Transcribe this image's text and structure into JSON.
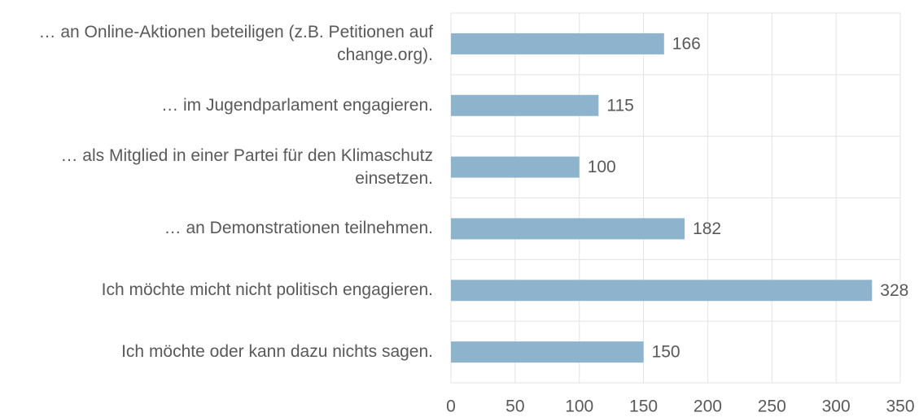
{
  "chart_data": {
    "type": "bar",
    "orientation": "horizontal",
    "categories": [
      "… an Online-Aktionen beteiligen (z.B. Petitionen auf change.org).",
      "… im Jugendparlament engagieren.",
      "… als Mitglied in einer Partei für den Klimaschutz einsetzen.",
      "… an Demonstrationen teilnehmen.",
      "Ich möchte micht nicht politisch engagieren.",
      "Ich möchte oder kann dazu nichts sagen."
    ],
    "values": [
      166,
      115,
      100,
      182,
      328,
      150
    ],
    "color": "#8db4cc",
    "xlim": [
      0,
      350
    ],
    "xticks": [
      0,
      50,
      100,
      150,
      200,
      250,
      300,
      350
    ],
    "grid": true
  }
}
